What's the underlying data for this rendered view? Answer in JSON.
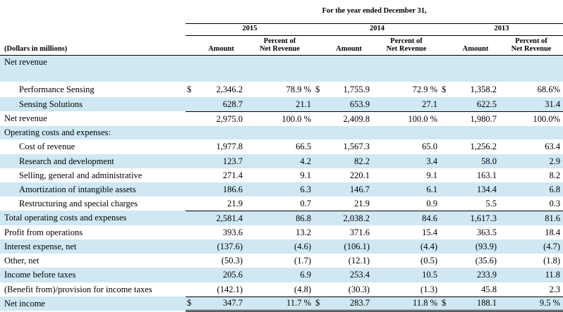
{
  "title_span": "For the year ended December 31,",
  "unit_label": "(Dollars in millions)",
  "years": [
    "2015",
    "2014",
    "2013"
  ],
  "col_amount": "Amount",
  "col_percent_line1": "Percent of",
  "col_percent_line2": "Net Revenue",
  "currency_symbol": "$",
  "rows": [
    {
      "label": "Net revenue",
      "indent": false,
      "values": [
        "",
        "",
        "",
        "",
        "",
        ""
      ],
      "currency": false,
      "shade": true,
      "section": true
    },
    {
      "label": "",
      "indent": false,
      "values": [
        "",
        "",
        "",
        "",
        "",
        ""
      ],
      "currency": false,
      "shade": true,
      "gap": true
    },
    {
      "label": "Performance Sensing",
      "indent": true,
      "values": [
        "2,346.2",
        "78.9 %",
        "1,755.9",
        "72.9 %",
        "1,358.2",
        "68.6%"
      ],
      "currency": true,
      "shade": false
    },
    {
      "label": "Sensing Solutions",
      "indent": true,
      "values": [
        "628.7",
        "21.1",
        "653.9",
        "27.1",
        "622.5",
        "31.4"
      ],
      "currency": false,
      "shade": true
    },
    {
      "label": "Net revenue",
      "indent": false,
      "values": [
        "2,975.0",
        "100.0 %",
        "2,409.8",
        "100.0 %",
        "1,980.7",
        "100.0%"
      ],
      "currency": false,
      "shade": false
    },
    {
      "label": "Operating costs and expenses:",
      "indent": false,
      "values": [
        "",
        "",
        "",
        "",
        "",
        ""
      ],
      "currency": false,
      "shade": true
    },
    {
      "label": "Cost of revenue",
      "indent": true,
      "values": [
        "1,977.8",
        "66.5",
        "1,567.3",
        "65.0",
        "1,256.2",
        "63.4"
      ],
      "currency": false,
      "shade": false
    },
    {
      "label": "Research and development",
      "indent": true,
      "values": [
        "123.7",
        "4.2",
        "82.2",
        "3.4",
        "58.0",
        "2.9"
      ],
      "currency": false,
      "shade": true
    },
    {
      "label": "Selling, general and administrative",
      "indent": true,
      "values": [
        "271.4",
        "9.1",
        "220.1",
        "9.1",
        "163.1",
        "8.2"
      ],
      "currency": false,
      "shade": false
    },
    {
      "label": "Amortization of intangible assets",
      "indent": true,
      "values": [
        "186.6",
        "6.3",
        "146.7",
        "6.1",
        "134.4",
        "6.8"
      ],
      "currency": false,
      "shade": true
    },
    {
      "label": "Restructuring and special charges",
      "indent": true,
      "values": [
        "21.9",
        "0.7",
        "21.9",
        "0.9",
        "5.5",
        "0.3"
      ],
      "currency": false,
      "shade": false
    },
    {
      "label": "Total operating costs and expenses",
      "indent": false,
      "values": [
        "2,581.4",
        "86.8",
        "2,038.2",
        "84.6",
        "1,617.3",
        "81.6"
      ],
      "currency": false,
      "shade": true
    },
    {
      "label": "Profit from operations",
      "indent": false,
      "values": [
        "393.6",
        "13.2",
        "371.6",
        "15.4",
        "363.5",
        "18.4"
      ],
      "currency": false,
      "shade": false
    },
    {
      "label": "Interest expense, net",
      "indent": false,
      "values": [
        "(137.6)",
        "(4.6)",
        "(106.1)",
        "(4.4)",
        "(93.9)",
        "(4.7)"
      ],
      "currency": false,
      "shade": true
    },
    {
      "label": "Other, net",
      "indent": false,
      "values": [
        "(50.3)",
        "(1.7)",
        "(12.1)",
        "(0.5)",
        "(35.6)",
        "(1.8)"
      ],
      "currency": false,
      "shade": false
    },
    {
      "label": "Income before taxes",
      "indent": false,
      "values": [
        "205.6",
        "6.9",
        "253.4",
        "10.5",
        "233.9",
        "11.8"
      ],
      "currency": false,
      "shade": true
    },
    {
      "label": "(Benefit from)/provision for income taxes",
      "indent": false,
      "values": [
        "(142.1)",
        "(4.8)",
        "(30.3)",
        "(1.3)",
        "45.8",
        "2.3"
      ],
      "currency": false,
      "shade": false
    },
    {
      "label": "Net income",
      "indent": false,
      "values": [
        "347.7",
        "11.7 %",
        "283.7",
        "11.8 %",
        "188.1",
        "9.5 %"
      ],
      "currency": true,
      "shade": true
    }
  ]
}
